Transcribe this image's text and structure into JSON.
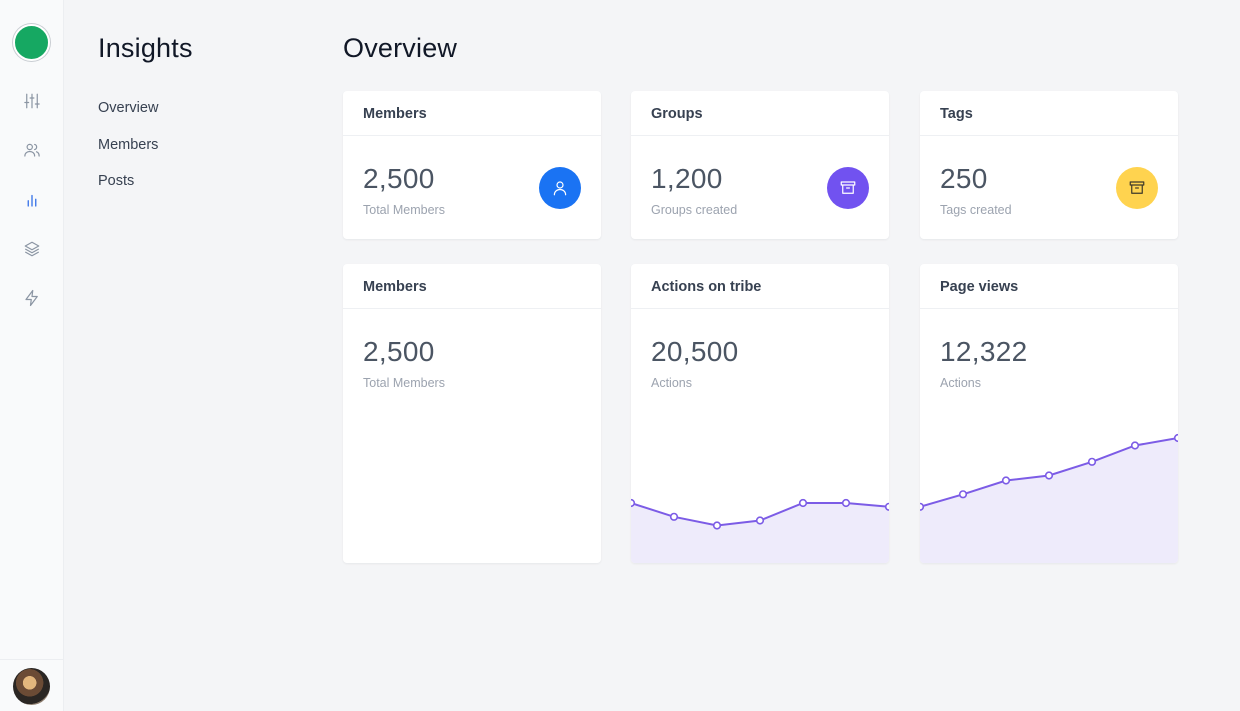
{
  "colors": {
    "accent": "#7c5ce6",
    "area_fill": "#eeebfb",
    "blue": "#1a73f3",
    "purple": "#7152f0",
    "yellow": "#ffd34f",
    "logo": "#16a862"
  },
  "rail": {
    "icons": [
      "sliders-icon",
      "users-icon",
      "bar-chart-icon",
      "layers-icon",
      "lightning-icon"
    ],
    "active_icon": "bar-chart-icon"
  },
  "subnav": {
    "title": "Insights",
    "items": [
      {
        "label": "Overview"
      },
      {
        "label": "Members"
      },
      {
        "label": "Posts"
      }
    ]
  },
  "main": {
    "title": "Overview",
    "cards": [
      {
        "title": "Members",
        "value": "2,500",
        "caption": "Total Members",
        "icon": "user-icon",
        "color": "blue"
      },
      {
        "title": "Groups",
        "value": "1,200",
        "caption": "Groups created",
        "icon": "archive-icon",
        "color": "purple"
      },
      {
        "title": "Tags",
        "value": "250",
        "caption": "Tags created",
        "icon": "archive-icon",
        "color": "yellow"
      },
      {
        "title": "Members",
        "value": "2,500",
        "caption": "Total Members"
      },
      {
        "title": "Actions on tribe",
        "value": "20,500",
        "caption": "Actions"
      },
      {
        "title": "Page views",
        "value": "12,322",
        "caption": "Actions"
      }
    ]
  },
  "chart_data": [
    {
      "type": "area",
      "name": "Actions on tribe",
      "x": [
        1,
        2,
        3,
        4,
        5,
        6,
        7
      ],
      "values": [
        48,
        37,
        30,
        34,
        48,
        48,
        45
      ],
      "ylim": [
        0,
        100
      ]
    },
    {
      "type": "area",
      "name": "Page views",
      "x": [
        1,
        2,
        3,
        4,
        5,
        6,
        7
      ],
      "values": [
        45,
        55,
        66,
        70,
        81,
        94,
        100
      ],
      "ylim": [
        0,
        100
      ]
    }
  ]
}
